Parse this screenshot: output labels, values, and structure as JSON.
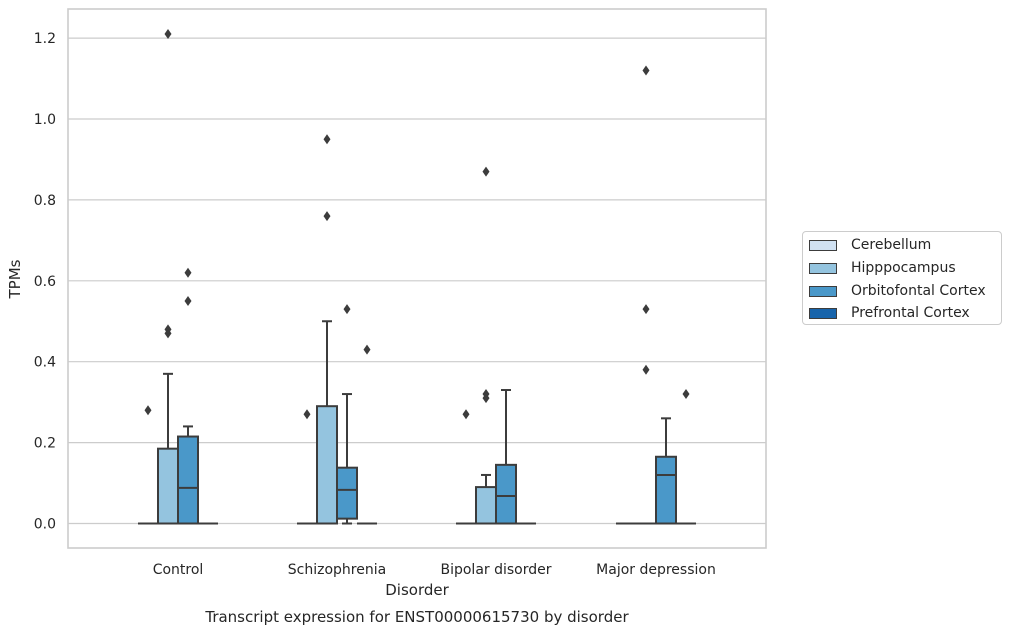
{
  "chart_data": {
    "type": "box",
    "title": "Transcript expression for ENST00000615730 by disorder",
    "xlabel": "Disorder",
    "ylabel": "TPMs",
    "categories": [
      "Control",
      "Schizophrenia",
      "Bipolar disorder",
      "Major depression"
    ],
    "yticks": [
      "0.0",
      "0.2",
      "0.4",
      "0.6",
      "0.8",
      "1.0",
      "1.2"
    ],
    "ylim": [
      -0.06,
      1.27
    ],
    "grid": true,
    "legend_position": "right",
    "series": [
      {
        "name": "Cerebellum",
        "color": "#d0e1f2",
        "boxes": [
          {
            "q1": 0,
            "median": 0,
            "q3": 0,
            "whisker_low": 0,
            "whisker_high": 0,
            "outliers": [
              0.28
            ]
          },
          {
            "q1": 0,
            "median": 0,
            "q3": 0,
            "whisker_low": 0,
            "whisker_high": 0,
            "outliers": [
              0.27
            ]
          },
          {
            "q1": 0,
            "median": 0,
            "q3": 0,
            "whisker_low": 0,
            "whisker_high": 0,
            "outliers": [
              0.27
            ]
          },
          {
            "q1": 0,
            "median": 0,
            "q3": 0,
            "whisker_low": 0,
            "whisker_high": 0,
            "outliers": []
          }
        ]
      },
      {
        "name": "Hipppocampus",
        "color": "#94c4df",
        "boxes": [
          {
            "q1": 0,
            "median": 0,
            "q3": 0.185,
            "whisker_low": 0,
            "whisker_high": 0.37,
            "outliers": [
              0.47,
              0.48,
              1.21
            ]
          },
          {
            "q1": 0,
            "median": 0,
            "q3": 0.29,
            "whisker_low": 0,
            "whisker_high": 0.5,
            "outliers": [
              0.76,
              0.95
            ]
          },
          {
            "q1": 0,
            "median": 0,
            "q3": 0.09,
            "whisker_low": 0,
            "whisker_high": 0.12,
            "outliers": [
              0.31,
              0.32,
              0.87
            ]
          },
          {
            "q1": 0,
            "median": 0,
            "q3": 0,
            "whisker_low": 0,
            "whisker_high": 0,
            "outliers": [
              0.38,
              0.53,
              1.12
            ]
          }
        ]
      },
      {
        "name": "Orbitofontal Cortex",
        "color": "#4a98c9",
        "boxes": [
          {
            "q1": 0,
            "median": 0.088,
            "q3": 0.215,
            "whisker_low": 0,
            "whisker_high": 0.24,
            "outliers": [
              0.55,
              0.62
            ]
          },
          {
            "q1": 0.012,
            "median": 0.083,
            "q3": 0.138,
            "whisker_low": 0,
            "whisker_high": 0.32,
            "outliers": [
              0.53
            ]
          },
          {
            "q1": 0,
            "median": 0.068,
            "q3": 0.145,
            "whisker_low": 0,
            "whisker_high": 0.33,
            "outliers": []
          },
          {
            "q1": 0,
            "median": 0.12,
            "q3": 0.165,
            "whisker_low": 0,
            "whisker_high": 0.26,
            "outliers": []
          }
        ]
      },
      {
        "name": "Prefrontal Cortex",
        "color": "#1764ab",
        "boxes": [
          {
            "q1": 0,
            "median": 0,
            "q3": 0,
            "whisker_low": 0,
            "whisker_high": 0,
            "outliers": []
          },
          {
            "q1": 0,
            "median": 0,
            "q3": 0,
            "whisker_low": 0,
            "whisker_high": 0,
            "outliers": [
              0.43
            ]
          },
          {
            "q1": 0,
            "median": 0,
            "q3": 0,
            "whisker_low": 0,
            "whisker_high": 0,
            "outliers": []
          },
          {
            "q1": 0,
            "median": 0,
            "q3": 0,
            "whisker_low": 0,
            "whisker_high": 0,
            "outliers": [
              0.32
            ]
          }
        ]
      }
    ]
  },
  "legend": {
    "items": [
      {
        "label": "Cerebellum",
        "color": "#d0e1f2"
      },
      {
        "label": "Hipppocampus",
        "color": "#94c4df"
      },
      {
        "label": "Orbitofontal Cortex",
        "color": "#4a98c9"
      },
      {
        "label": "Prefrontal Cortex",
        "color": "#1764ab"
      }
    ]
  },
  "colors": {
    "grid": "#cccccc",
    "box_edge": "#3c3c3c",
    "outlier": "#3c3c3c"
  }
}
